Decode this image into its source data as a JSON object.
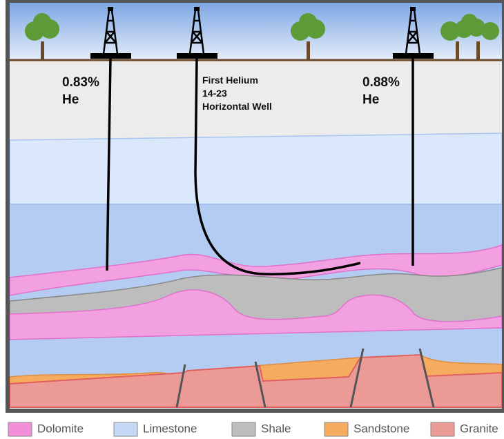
{
  "wells": [
    {
      "lines": [
        "0.83%",
        "He"
      ]
    },
    {
      "lines": [
        "First Helium",
        "14-23",
        "Horizontal Well"
      ]
    },
    {
      "lines": [
        "0.88%",
        "He"
      ]
    }
  ],
  "legend": [
    {
      "label": "Dolomite",
      "color": "#f28fd8"
    },
    {
      "label": "Limestone",
      "color": "#c4d8f6"
    },
    {
      "label": "Shale",
      "color": "#bdbdbd"
    },
    {
      "label": "Sandstone",
      "color": "#f5ac5e"
    },
    {
      "label": "Granite",
      "color": "#ec9a96"
    }
  ]
}
